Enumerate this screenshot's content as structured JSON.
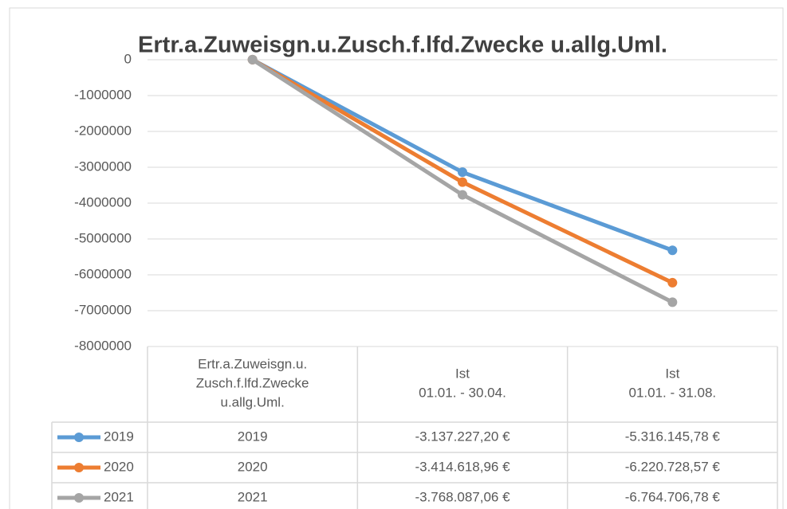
{
  "chart_data": {
    "type": "line",
    "title": "Ertr.a.Zuweisgn.u.Zusch.f.lfd.Zwecke u.allg.Uml.",
    "categories": [
      "Ertr.a.Zuweisgn.u.\nZusch.f.lfd.Zwecke\nu.allg.Uml.",
      "Ist\n01.01. - 30.04.",
      "Ist\n01.01. - 31.08."
    ],
    "series": [
      {
        "name": "2019",
        "color": "#5b9bd5",
        "values": [
          2019,
          -3137227.2,
          -5316145.78
        ],
        "value_labels": [
          "2019",
          "-3.137.227,20 €",
          "-5.316.145,78 €"
        ]
      },
      {
        "name": "2020",
        "color": "#ed7d31",
        "values": [
          2020,
          -3414618.96,
          -6220728.57
        ],
        "value_labels": [
          "2020",
          "-3.414.618,96 €",
          "-6.220.728,57 €"
        ]
      },
      {
        "name": "2021",
        "color": "#a5a5a5",
        "values": [
          2021,
          -3768087.06,
          -6764706.78
        ],
        "value_labels": [
          "2021",
          "-3.768.087,06 €",
          "-6.764.706,78 €"
        ]
      }
    ],
    "ylim": [
      -8000000,
      0
    ],
    "yticks": [
      0,
      -1000000,
      -2000000,
      -3000000,
      -4000000,
      -5000000,
      -6000000,
      -7000000,
      -8000000
    ],
    "grid": true,
    "data_table": true
  }
}
